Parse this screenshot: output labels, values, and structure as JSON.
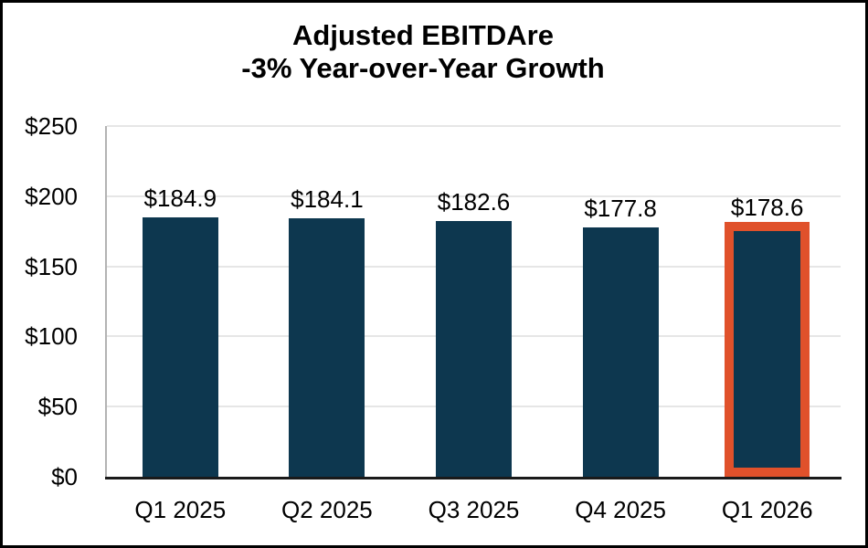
{
  "chart_data": {
    "type": "bar",
    "title_lines": [
      "Adjusted EBITDAre",
      "-3% Year-over-Year Growth"
    ],
    "categories": [
      "Q1 2025",
      "Q2 2025",
      "Q3 2025",
      "Q4 2025",
      "Q1 2026"
    ],
    "values": [
      184.9,
      184.1,
      182.6,
      177.8,
      178.6
    ],
    "value_labels": [
      "$184.9",
      "$184.1",
      "$182.6",
      "$177.8",
      "$178.6"
    ],
    "y_tick_values": [
      0,
      50,
      100,
      150,
      200,
      250
    ],
    "y_tick_labels": [
      "$0",
      "$50",
      "$100",
      "$150",
      "$200",
      "$250"
    ],
    "ylim": [
      0,
      250
    ],
    "grid": "horizontal",
    "legend": "none",
    "highlight_index": 4,
    "colors": {
      "bar_fill": "#0d374f",
      "highlight_outline": "#e0512b",
      "gridline": "#e6e6e6",
      "y_axis_line": "#b3b3b3",
      "baseline": "#1a1a1a",
      "text": "#000000",
      "background": "#ffffff",
      "frame_border": "#000000"
    }
  }
}
